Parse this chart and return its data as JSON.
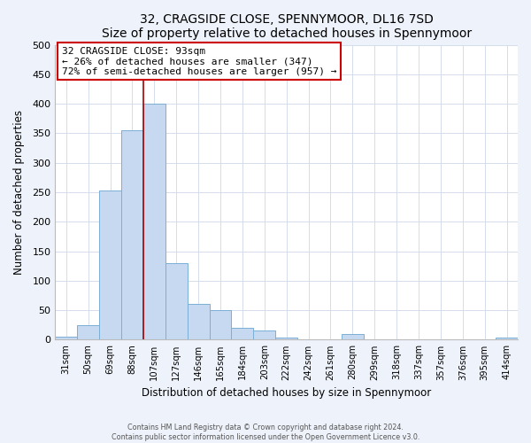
{
  "title": "32, CRAGSIDE CLOSE, SPENNYMOOR, DL16 7SD",
  "subtitle": "Size of property relative to detached houses in Spennymoor",
  "xlabel": "Distribution of detached houses by size in Spennymoor",
  "ylabel": "Number of detached properties",
  "bar_labels": [
    "31sqm",
    "50sqm",
    "69sqm",
    "88sqm",
    "107sqm",
    "127sqm",
    "146sqm",
    "165sqm",
    "184sqm",
    "203sqm",
    "222sqm",
    "242sqm",
    "261sqm",
    "280sqm",
    "299sqm",
    "318sqm",
    "337sqm",
    "357sqm",
    "376sqm",
    "395sqm",
    "414sqm"
  ],
  "bar_values": [
    5,
    25,
    253,
    355,
    400,
    130,
    60,
    50,
    20,
    15,
    3,
    0,
    0,
    10,
    0,
    0,
    0,
    0,
    0,
    0,
    3
  ],
  "bar_color": "#c6d9f1",
  "bar_edge_color": "#7bafd4",
  "vline_x": 3.5,
  "vline_color": "#aa0000",
  "annotation_title": "32 CRAGSIDE CLOSE: 93sqm",
  "annotation_line1": "← 26% of detached houses are smaller (347)",
  "annotation_line2": "72% of semi-detached houses are larger (957) →",
  "annotation_box_color": "#ffffff",
  "annotation_box_edge": "#cc0000",
  "ylim": [
    0,
    500
  ],
  "yticks": [
    0,
    50,
    100,
    150,
    200,
    250,
    300,
    350,
    400,
    450,
    500
  ],
  "footer1": "Contains HM Land Registry data © Crown copyright and database right 2024.",
  "footer2": "Contains public sector information licensed under the Open Government Licence v3.0.",
  "bg_color": "#eef2fa",
  "plot_bg_color": "#ffffff",
  "grid_color": "#d0d8e8"
}
